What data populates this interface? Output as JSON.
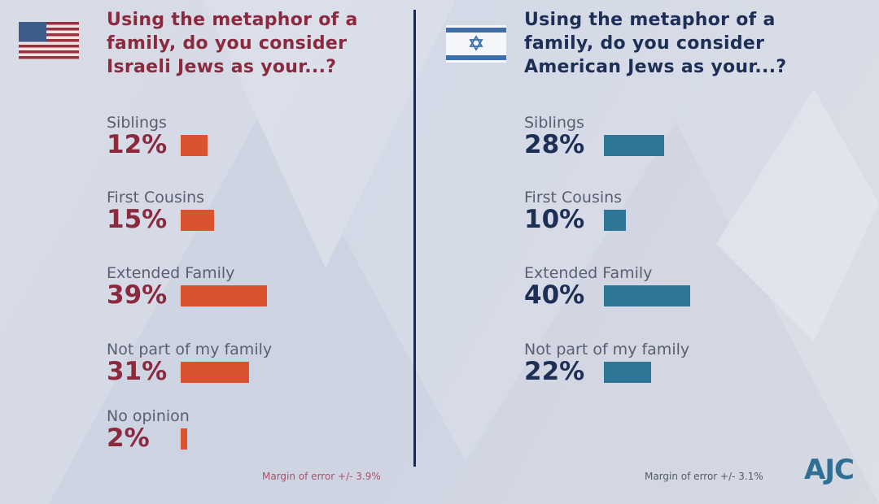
{
  "colors": {
    "left_title": "#8b2a3f",
    "left_bar": "#d9542e",
    "right_title": "#1e2f55",
    "right_bar": "#2f7596"
  },
  "logo": "AJC",
  "chart_data": [
    {
      "type": "bar",
      "orientation": "horizontal",
      "flag": "us-flag",
      "title": "Using the metaphor of a family, do you consider Israeli Jews as your...?",
      "title_lines": [
        "Using the metaphor of a",
        "family, do you consider",
        "Israeli Jews as your...?"
      ],
      "categories": [
        "Siblings",
        "First Cousins",
        "Extended Family",
        "Not part of my family",
        "No opinion"
      ],
      "values": [
        12,
        15,
        39,
        31,
        2
      ],
      "labels": [
        "12%",
        "15%",
        "39%",
        "31%",
        "2%"
      ],
      "unit": "%",
      "note": "Margin of error +/- 3.9%"
    },
    {
      "type": "bar",
      "orientation": "horizontal",
      "flag": "israel-flag",
      "title": "Using the metaphor of a family, do you consider American Jews as your...?",
      "title_lines": [
        "Using the metaphor of a",
        "family, do you consider",
        "American Jews as your...?"
      ],
      "categories": [
        "Siblings",
        "First Cousins",
        "Extended Family",
        "Not part of my family"
      ],
      "values": [
        28,
        10,
        40,
        22
      ],
      "labels": [
        "28%",
        "10%",
        "40%",
        "22%"
      ],
      "unit": "%",
      "note": "Margin of error +/- 3.1%"
    }
  ]
}
